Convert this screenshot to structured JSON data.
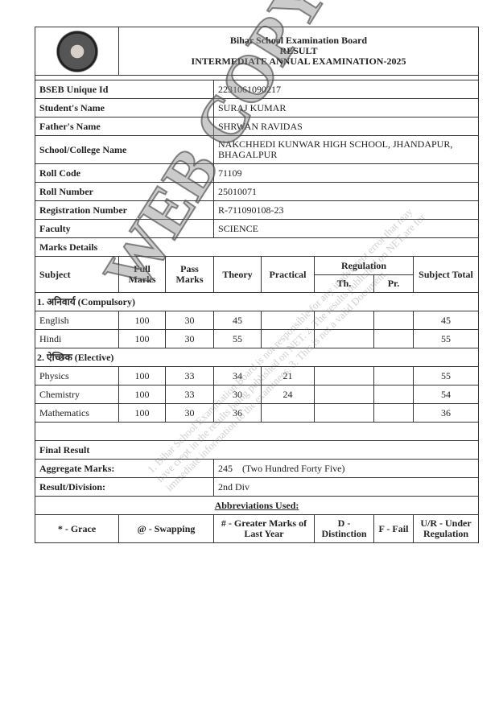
{
  "header": {
    "board": "Bihar School Examination Board",
    "result": "RESULT",
    "exam": "INTERMEDIATE ANNUAL EXAMINATION-2025",
    "logo_text": "Bihar School Examination Board"
  },
  "details": [
    {
      "label": "BSEB Unique Id",
      "value": "2231061090217"
    },
    {
      "label": "Student's Name",
      "value": "SURAJ KUMAR"
    },
    {
      "label": "Father's Name",
      "value": "SHRWAN RAVIDAS"
    },
    {
      "label": "School/College Name",
      "value": "NAKCHHEDI KUNWAR HIGH SCHOOL, JHANDAPUR, BHAGALPUR"
    },
    {
      "label": "Roll Code",
      "value": "71109"
    },
    {
      "label": "Roll Number",
      "value": "25010071"
    },
    {
      "label": "Registration Number",
      "value": "R-711090108-23"
    },
    {
      "label": "Faculty",
      "value": "SCIENCE"
    }
  ],
  "marks": {
    "title": "Marks Details",
    "columns": {
      "subject": "Subject",
      "full": "Full Marks",
      "pass": "Pass Marks",
      "theory": "Theory",
      "practical": "Practical",
      "regulation": "Regulation",
      "th": "Th.",
      "pr": "Pr.",
      "total": "Subject Total"
    },
    "groups": [
      {
        "name": "1. अनिवार्य (Compulsory)",
        "rows": [
          {
            "subject": "English",
            "full": "100",
            "pass": "30",
            "theory": "45",
            "practical": "",
            "th": "",
            "pr": "",
            "total": "45"
          },
          {
            "subject": "Hindi",
            "full": "100",
            "pass": "30",
            "theory": "55",
            "practical": "",
            "th": "",
            "pr": "",
            "total": "55"
          }
        ]
      },
      {
        "name": "2. ऐच्छिक (Elective)",
        "rows": [
          {
            "subject": "Physics",
            "full": "100",
            "pass": "33",
            "theory": "34",
            "practical": "21",
            "th": "",
            "pr": "",
            "total": "55"
          },
          {
            "subject": "Chemistry",
            "full": "100",
            "pass": "33",
            "theory": "30",
            "practical": "24",
            "th": "",
            "pr": "",
            "total": "54"
          },
          {
            "subject": "Mathematics",
            "full": "100",
            "pass": "30",
            "theory": "36",
            "practical": "",
            "th": "",
            "pr": "",
            "total": "36"
          }
        ]
      }
    ]
  },
  "final": {
    "title": "Final Result",
    "aggregate_label": "Aggregate Marks:",
    "aggregate_value": "245    (Two Hundred Forty Five)",
    "division_label": "Result/Division:",
    "division_value": "2nd Div"
  },
  "abbreviations": {
    "title": "Abbreviations Used:",
    "items": [
      "* - Grace",
      "@ - Swapping",
      "# - Greater Marks of Last Year",
      "D - Distinction",
      "F - Fail",
      "U/R - Under Regulation"
    ]
  },
  "watermark": {
    "stamp": "WEB COPY",
    "notes": "1. Bihar School Examination Board is not responsible for any inadvertent error that may have crept in the results being published on NET. 2. The results published on NET are for immediate information to the examinees. 3. This is not a valid Document."
  }
}
